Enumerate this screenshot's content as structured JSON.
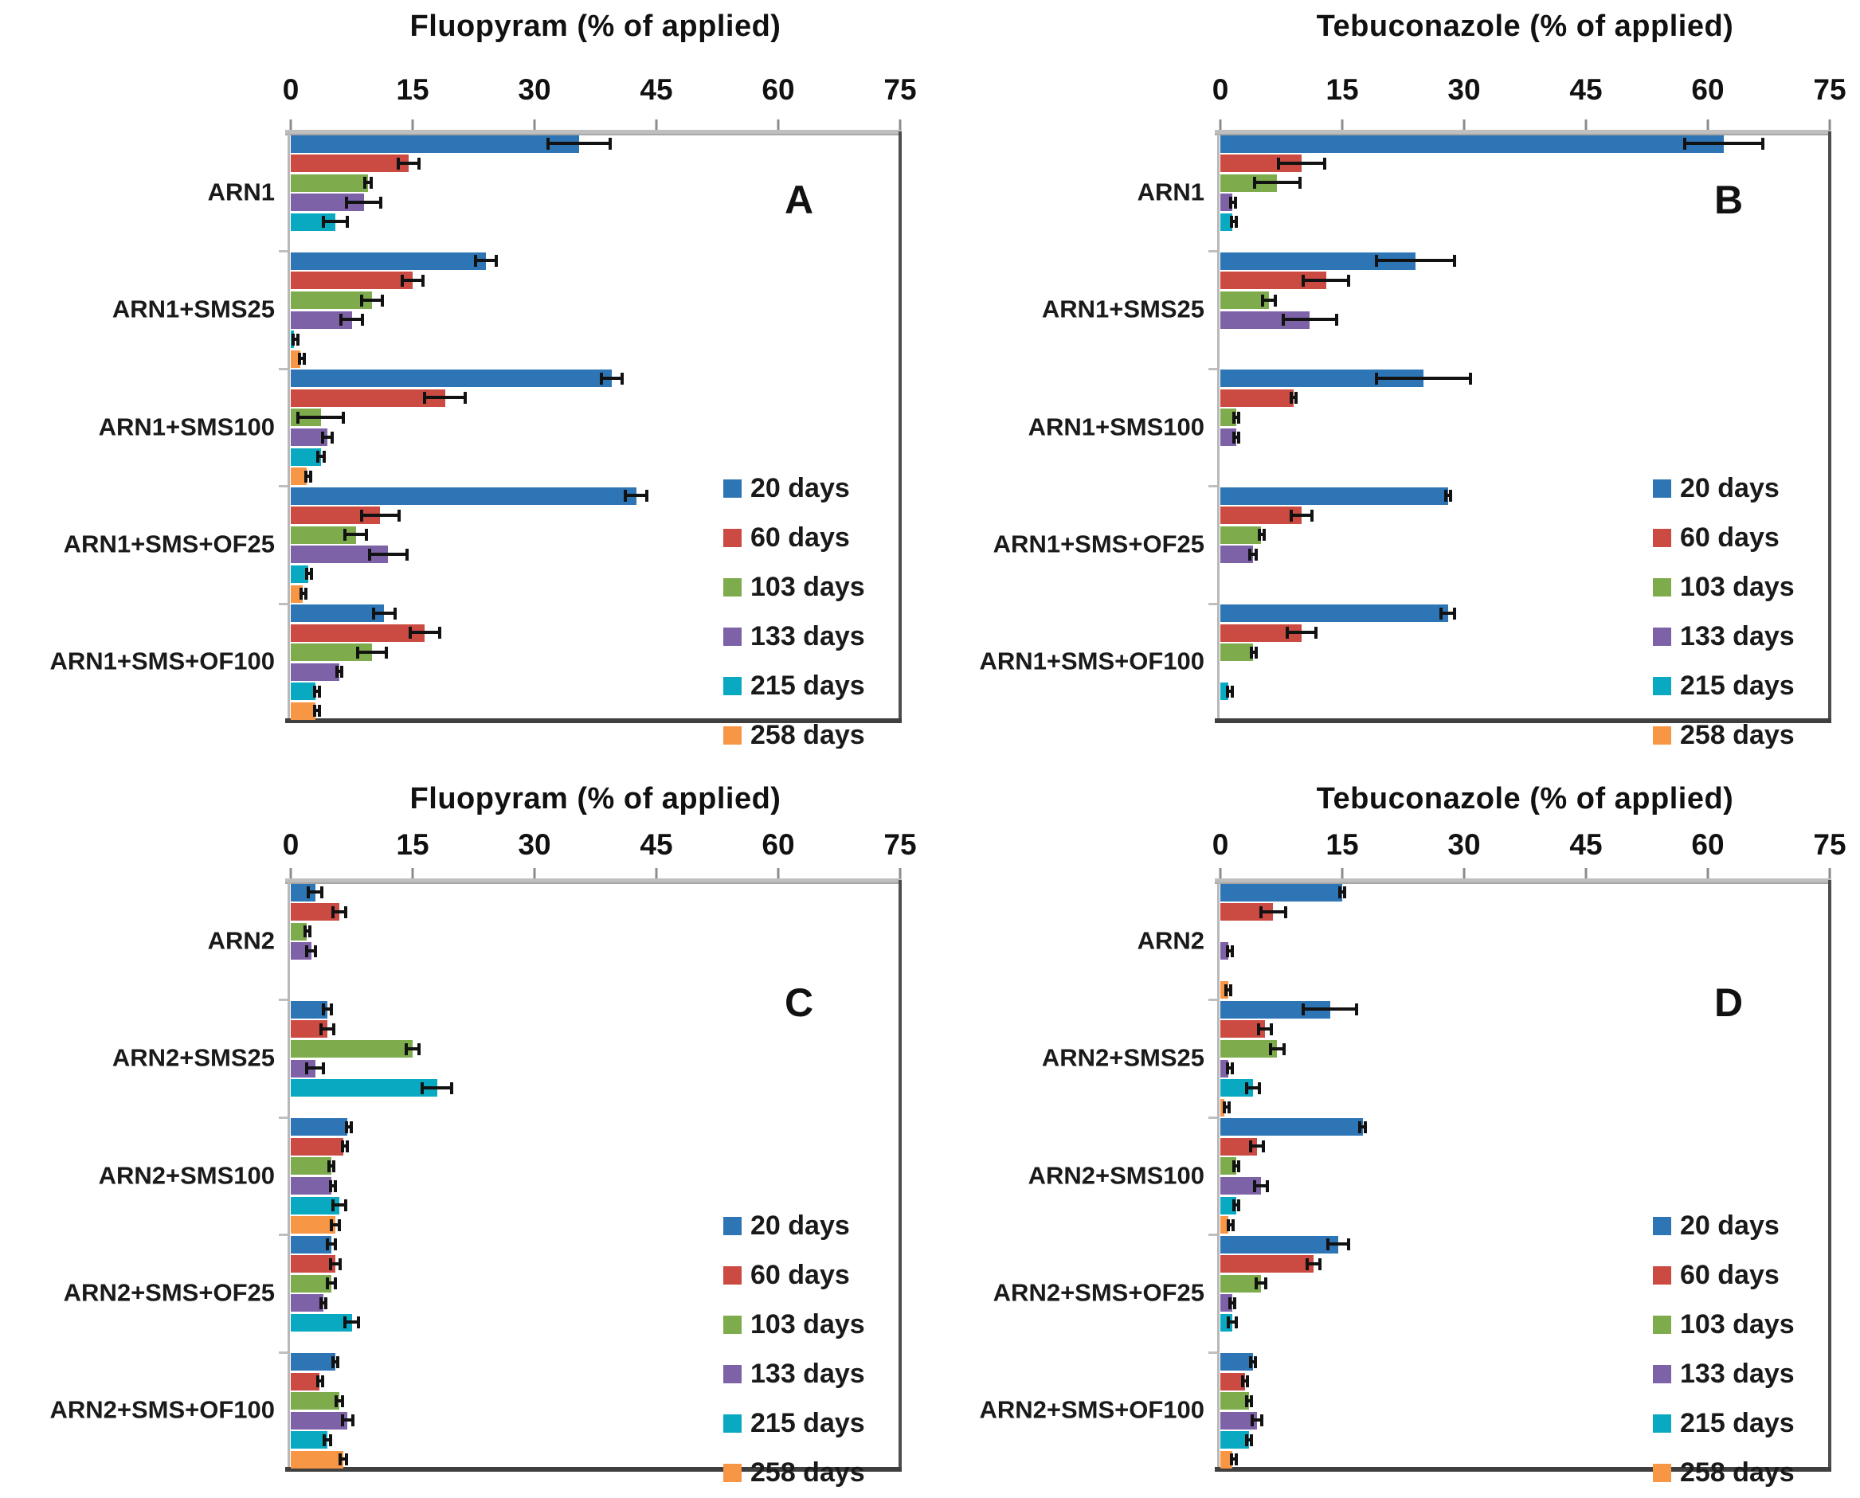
{
  "legend": {
    "labels": [
      "20 days",
      "60 days",
      "103 days",
      "133 days",
      "215 days",
      "258 days"
    ],
    "colors": [
      "#2E75B6",
      "#CB4A42",
      "#7EAC4C",
      "#7D62A8",
      "#0AA9C2",
      "#F79645"
    ],
    "position": "inside-right"
  },
  "axis": {
    "min": 0,
    "max": 75,
    "ticks": [
      0,
      15,
      30,
      45,
      60,
      75
    ],
    "grid": false
  },
  "chart_data": [
    {
      "panel_label": "A",
      "type": "bar",
      "orientation": "horizontal",
      "title": "Fluopyram (% of applied)",
      "xlabel": "Fluopyram (% of applied)",
      "xlim": [
        0,
        75
      ],
      "xticks": [
        0,
        15,
        30,
        45,
        60,
        75
      ],
      "categories": [
        "ARN1",
        "ARN1+SMS25",
        "ARN1+SMS100",
        "ARN1+SMS+OF25",
        "ARN1+SMS+OF100"
      ],
      "series": [
        {
          "name": "20 days",
          "values": [
            35.5,
            24,
            39.5,
            42.5,
            11.5
          ],
          "errors": [
            4,
            1.5,
            1.5,
            1.5,
            1.5
          ]
        },
        {
          "name": "60 days",
          "values": [
            14.5,
            15,
            19,
            11,
            16.5
          ],
          "errors": [
            1.5,
            1.5,
            2.7,
            2.5,
            2
          ]
        },
        {
          "name": "103 days",
          "values": [
            9.5,
            10,
            3.7,
            8,
            10
          ],
          "errors": [
            0.6,
            1.5,
            3,
            1.5,
            2
          ]
        },
        {
          "name": "133 days",
          "values": [
            9,
            7.5,
            4.5,
            12,
            6
          ],
          "errors": [
            2.3,
            1.5,
            0.8,
            2.5,
            0.5
          ]
        },
        {
          "name": "215 days",
          "values": [
            5.5,
            0.4,
            3.7,
            2.2,
            3
          ],
          "errors": [
            1.7,
            0.3,
            0.6,
            0.4,
            0.3
          ]
        },
        {
          "name": "258 days",
          "values": [
            null,
            1.2,
            2,
            1.5,
            3
          ],
          "errors": [
            null,
            0.3,
            0.3,
            0.4,
            0.3
          ]
        }
      ]
    },
    {
      "panel_label": "B",
      "type": "bar",
      "orientation": "horizontal",
      "title": "Tebuconazole (% of applied)",
      "xlabel": "Tebuconazole (% of applied)",
      "xlim": [
        0,
        75
      ],
      "xticks": [
        0,
        15,
        30,
        45,
        60,
        75
      ],
      "categories": [
        "ARN1",
        "ARN1+SMS25",
        "ARN1+SMS100",
        "ARN1+SMS+OF25",
        "ARN1+SMS+OF100"
      ],
      "series": [
        {
          "name": "20 days",
          "values": [
            62,
            24,
            25,
            28,
            28
          ],
          "errors": [
            5,
            5,
            6,
            0.5,
            1
          ]
        },
        {
          "name": "60 days",
          "values": [
            10,
            13,
            9,
            10,
            10
          ],
          "errors": [
            3,
            3,
            0.5,
            1.5,
            2
          ]
        },
        {
          "name": "103 days",
          "values": [
            7,
            6,
            2,
            5,
            4
          ],
          "errors": [
            3,
            1,
            0.5,
            0.4,
            0.4
          ]
        },
        {
          "name": "133 days",
          "values": [
            1.5,
            11,
            2,
            4,
            null
          ],
          "errors": [
            0.4,
            3.5,
            0.5,
            0.6,
            null
          ]
        },
        {
          "name": "215 days",
          "values": [
            1.5,
            null,
            null,
            null,
            1
          ],
          "errors": [
            0.3,
            null,
            null,
            null,
            0.3
          ]
        },
        {
          "name": "258 days",
          "values": [
            null,
            null,
            null,
            null,
            null
          ],
          "errors": [
            null,
            null,
            null,
            null,
            null
          ]
        }
      ]
    },
    {
      "panel_label": "C",
      "type": "bar",
      "orientation": "horizontal",
      "title": "Fluopyram (% of applied)",
      "xlabel": "Fluopyram (% of applied)",
      "xlim": [
        0,
        75
      ],
      "xticks": [
        0,
        15,
        30,
        45,
        60,
        75
      ],
      "categories": [
        "ARN2",
        "ARN2+SMS25",
        "ARN2+SMS100",
        "ARN2+SMS+OF25",
        "ARN2+SMS+OF100"
      ],
      "series": [
        {
          "name": "20 days",
          "values": [
            3,
            4.5,
            7,
            5,
            5.5
          ],
          "errors": [
            1,
            0.7,
            0.3,
            0.7,
            0.5
          ]
        },
        {
          "name": "60 days",
          "values": [
            6,
            4.5,
            6.5,
            5.5,
            3.5
          ],
          "errors": [
            1,
            1,
            0.3,
            0.8,
            0.4
          ]
        },
        {
          "name": "103 days",
          "values": [
            2,
            15,
            5,
            5,
            6
          ],
          "errors": [
            0.4,
            1,
            0.5,
            0.7,
            0.6
          ]
        },
        {
          "name": "133 days",
          "values": [
            2.5,
            3,
            5,
            4,
            7
          ],
          "errors": [
            0.7,
            1.2,
            0.3,
            0.5,
            0.8
          ]
        },
        {
          "name": "215 days",
          "values": [
            null,
            18,
            6,
            7.5,
            4.5
          ],
          "errors": [
            null,
            2,
            1,
            1,
            0.6
          ]
        },
        {
          "name": "258 days",
          "values": [
            null,
            null,
            5.5,
            null,
            6.5
          ],
          "errors": [
            null,
            null,
            0.7,
            null,
            0.6
          ]
        }
      ]
    },
    {
      "panel_label": "D",
      "type": "bar",
      "orientation": "horizontal",
      "title": "Tebuconazole (% of applied)",
      "xlabel": "Tebuconazole (% of applied)",
      "xlim": [
        0,
        75
      ],
      "xticks": [
        0,
        15,
        30,
        45,
        60,
        75
      ],
      "categories": [
        "ARN2",
        "ARN2+SMS25",
        "ARN2+SMS100",
        "ARN2+SMS+OF25",
        "ARN2+SMS+OF100"
      ],
      "series": [
        {
          "name": "20 days",
          "values": [
            15,
            13.5,
            17.5,
            14.5,
            4
          ],
          "errors": [
            0.5,
            3.5,
            0.5,
            1.5,
            0.5
          ]
        },
        {
          "name": "60 days",
          "values": [
            6.5,
            5.5,
            4.5,
            11.5,
            3
          ],
          "errors": [
            1.7,
            1,
            1,
            1,
            0.5
          ]
        },
        {
          "name": "103 days",
          "values": [
            null,
            7,
            2,
            5,
            3.5
          ],
          "errors": [
            null,
            1,
            0.5,
            0.8,
            0.5
          ]
        },
        {
          "name": "133 days",
          "values": [
            1,
            1,
            5,
            1.5,
            4.5
          ],
          "errors": [
            0.3,
            0.3,
            1,
            0.5,
            0.8
          ]
        },
        {
          "name": "215 days",
          "values": [
            null,
            4,
            2,
            1.5,
            3.5
          ],
          "errors": [
            null,
            1,
            0.5,
            0.7,
            0.5
          ]
        },
        {
          "name": "258 days",
          "values": [
            1,
            0.5,
            1,
            null,
            1.5
          ],
          "errors": [
            0.5,
            0.2,
            0.2,
            null,
            0.3
          ]
        }
      ]
    }
  ]
}
